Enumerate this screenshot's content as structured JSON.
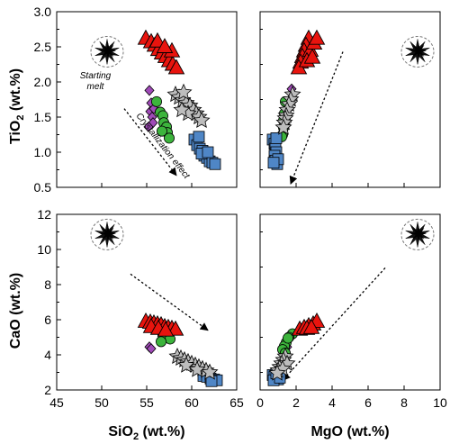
{
  "colors": {
    "triangle": "#e8140e",
    "star": "#bdbdbd",
    "circle": "#3cb43c",
    "square": "#4f86c6",
    "diamond": "#a04ab8",
    "starting_melt": "#111111"
  },
  "chart_data": [
    {
      "type": "scatter",
      "panel": "top-left",
      "xlabel": "",
      "ylabel": "TiO2 (wt.%)",
      "xlim": [
        45,
        65
      ],
      "ylim": [
        0.5,
        3.0
      ],
      "xticks": [],
      "yticks": [
        "0.5",
        "1.0",
        "1.5",
        "2.0",
        "2.5",
        "3.0"
      ],
      "yticks_values": [
        0.5,
        1.0,
        1.5,
        2.0,
        2.5,
        3.0
      ],
      "series": [
        {
          "marker": "triangle",
          "points": [
            [
              54.9,
              2.62
            ],
            [
              55.5,
              2.57
            ],
            [
              55.9,
              2.52
            ],
            [
              56.3,
              2.46
            ],
            [
              56.7,
              2.41
            ],
            [
              57.1,
              2.36
            ],
            [
              57.5,
              2.3
            ],
            [
              57.9,
              2.25
            ],
            [
              58.3,
              2.2
            ],
            [
              57.8,
              2.44
            ],
            [
              56.2,
              2.58
            ],
            [
              57.0,
              2.5
            ]
          ]
        },
        {
          "marker": "star",
          "points": [
            [
              58.2,
              1.82
            ],
            [
              58.6,
              1.78
            ],
            [
              59.0,
              1.74
            ],
            [
              59.4,
              1.7
            ],
            [
              59.8,
              1.66
            ],
            [
              60.2,
              1.6
            ],
            [
              60.5,
              1.55
            ],
            [
              59.1,
              1.85
            ],
            [
              59.6,
              1.55
            ],
            [
              60.8,
              1.5
            ],
            [
              61.1,
              1.45
            ],
            [
              58.9,
              1.6
            ]
          ]
        },
        {
          "marker": "circle",
          "points": [
            [
              56.1,
              1.72
            ],
            [
              56.5,
              1.57
            ],
            [
              56.8,
              1.52
            ],
            [
              56.9,
              1.42
            ],
            [
              57.2,
              1.36
            ],
            [
              57.3,
              1.28
            ],
            [
              56.7,
              1.3
            ],
            [
              57.5,
              1.2
            ]
          ]
        },
        {
          "marker": "square",
          "points": [
            [
              60.3,
              1.18
            ],
            [
              60.6,
              1.1
            ],
            [
              60.9,
              1.05
            ],
            [
              61.2,
              1.02
            ],
            [
              61.4,
              0.95
            ],
            [
              61.7,
              0.92
            ],
            [
              62.0,
              0.87
            ],
            [
              62.3,
              0.85
            ],
            [
              61.1,
              0.98
            ],
            [
              61.8,
              1.0
            ],
            [
              60.8,
              1.22
            ],
            [
              62.6,
              0.83
            ]
          ]
        },
        {
          "marker": "diamond",
          "points": [
            [
              55.3,
              1.88
            ],
            [
              55.5,
              1.7
            ],
            [
              55.4,
              1.58
            ],
            [
              55.6,
              1.5
            ],
            [
              55.7,
              1.42
            ],
            [
              55.2,
              1.36
            ],
            [
              55.8,
              1.62
            ]
          ]
        },
        {
          "marker": "starting_melt",
          "points": [
            [
              50.6,
              2.43
            ]
          ]
        }
      ],
      "annotations": [
        "Starting melt",
        "Crystallization effect"
      ],
      "arrow": {
        "from": [
          52.5,
          1.62
        ],
        "to": [
          58.3,
          0.67
        ]
      }
    },
    {
      "type": "scatter",
      "panel": "top-right",
      "xlabel": "",
      "ylabel": "",
      "xlim": [
        0,
        10
      ],
      "ylim": [
        0.5,
        3.0
      ],
      "xticks": [],
      "yticks": [],
      "series": [
        {
          "marker": "triangle",
          "points": [
            [
              2.7,
              2.62
            ],
            [
              2.55,
              2.52
            ],
            [
              2.45,
              2.44
            ],
            [
              2.35,
              2.36
            ],
            [
              2.25,
              2.28
            ],
            [
              2.15,
              2.2
            ],
            [
              2.8,
              2.45
            ],
            [
              3.0,
              2.55
            ],
            [
              3.15,
              2.62
            ],
            [
              2.6,
              2.3
            ],
            [
              2.9,
              2.35
            ]
          ]
        },
        {
          "marker": "star",
          "points": [
            [
              1.8,
              1.82
            ],
            [
              1.7,
              1.75
            ],
            [
              1.6,
              1.68
            ],
            [
              1.5,
              1.6
            ],
            [
              1.45,
              1.52
            ],
            [
              1.4,
              1.48
            ],
            [
              1.35,
              1.42
            ],
            [
              1.3,
              1.35
            ]
          ]
        },
        {
          "marker": "circle",
          "points": [
            [
              1.4,
              1.72
            ],
            [
              1.35,
              1.55
            ],
            [
              1.3,
              1.45
            ],
            [
              1.3,
              1.35
            ],
            [
              1.25,
              1.25
            ],
            [
              1.2,
              1.22
            ]
          ]
        },
        {
          "marker": "square",
          "points": [
            [
              0.7,
              1.18
            ],
            [
              0.8,
              1.12
            ],
            [
              0.85,
              1.05
            ],
            [
              0.9,
              1.0
            ],
            [
              0.8,
              0.95
            ],
            [
              0.85,
              0.88
            ],
            [
              0.95,
              0.83
            ],
            [
              1.0,
              0.9
            ],
            [
              0.75,
              0.85
            ],
            [
              0.9,
              1.2
            ]
          ]
        },
        {
          "marker": "diamond",
          "points": [
            [
              1.75,
              1.9
            ],
            [
              1.65,
              1.75
            ],
            [
              1.6,
              1.62
            ]
          ]
        },
        {
          "marker": "starting_melt",
          "points": [
            [
              8.75,
              2.43
            ]
          ]
        }
      ],
      "arrow": {
        "from": [
          4.6,
          2.43
        ],
        "to": [
          1.7,
          0.55
        ]
      }
    },
    {
      "type": "scatter",
      "panel": "bottom-left",
      "xlabel": "SiO2 (wt.%)",
      "ylabel": "CaO (wt.%)",
      "xlim": [
        45,
        65
      ],
      "ylim": [
        2,
        12
      ],
      "xticks": [
        "45",
        "50",
        "55",
        "60",
        "65"
      ],
      "xticks_values": [
        45,
        50,
        55,
        60,
        65
      ],
      "yticks": [
        "2",
        "4",
        "6",
        "8",
        "10",
        "12"
      ],
      "yticks_values": [
        2,
        4,
        6,
        8,
        10,
        12
      ],
      "series": [
        {
          "marker": "triangle",
          "points": [
            [
              54.9,
              5.9
            ],
            [
              55.4,
              5.85
            ],
            [
              55.8,
              5.8
            ],
            [
              56.2,
              5.75
            ],
            [
              56.6,
              5.7
            ],
            [
              57.0,
              5.6
            ],
            [
              57.4,
              5.55
            ],
            [
              57.8,
              5.5
            ],
            [
              58.2,
              5.45
            ],
            [
              55.5,
              5.6
            ],
            [
              56.3,
              5.5
            ],
            [
              57.1,
              5.4
            ]
          ]
        },
        {
          "marker": "star",
          "points": [
            [
              58.4,
              3.9
            ],
            [
              58.8,
              3.8
            ],
            [
              59.2,
              3.7
            ],
            [
              59.6,
              3.6
            ],
            [
              60.0,
              3.5
            ],
            [
              60.4,
              3.4
            ],
            [
              60.8,
              3.3
            ],
            [
              61.2,
              3.2
            ],
            [
              61.6,
              3.1
            ],
            [
              62.0,
              3.0
            ],
            [
              59.4,
              3.4
            ],
            [
              60.6,
              3.15
            ]
          ]
        },
        {
          "marker": "circle",
          "points": [
            [
              56.8,
              5.1
            ],
            [
              57.2,
              5.0
            ],
            [
              57.6,
              4.9
            ],
            [
              56.6,
              4.75
            ]
          ]
        },
        {
          "marker": "square",
          "points": [
            [
              61.3,
              2.8
            ],
            [
              61.7,
              2.75
            ],
            [
              62.1,
              2.65
            ],
            [
              62.5,
              2.6
            ],
            [
              62.8,
              2.55
            ],
            [
              62.2,
              2.5
            ]
          ]
        },
        {
          "marker": "diamond",
          "points": [
            [
              55.3,
              4.45
            ],
            [
              55.5,
              4.35
            ]
          ]
        },
        {
          "marker": "starting_melt",
          "points": [
            [
              50.6,
              10.85
            ]
          ]
        }
      ],
      "arrow": {
        "from": [
          53.2,
          8.6
        ],
        "to": [
          61.8,
          5.4
        ]
      }
    },
    {
      "type": "scatter",
      "panel": "bottom-right",
      "xlabel": "MgO (wt.%)",
      "ylabel": "",
      "xlim": [
        0,
        10
      ],
      "ylim": [
        2,
        12
      ],
      "xticks": [
        "0",
        "2",
        "4",
        "6",
        "8",
        "10"
      ],
      "xticks_values": [
        0,
        2,
        4,
        6,
        8,
        10
      ],
      "yticks": [],
      "series": [
        {
          "marker": "triangle",
          "points": [
            [
              2.2,
              5.45
            ],
            [
              2.45,
              5.55
            ],
            [
              2.7,
              5.65
            ],
            [
              2.95,
              5.75
            ],
            [
              3.15,
              5.9
            ],
            [
              2.6,
              5.5
            ],
            [
              2.85,
              5.55
            ]
          ]
        },
        {
          "marker": "star",
          "points": [
            [
              1.4,
              3.9
            ],
            [
              1.3,
              3.7
            ],
            [
              1.2,
              3.5
            ],
            [
              1.1,
              3.3
            ],
            [
              1.0,
              3.1
            ],
            [
              1.5,
              3.5
            ],
            [
              1.25,
              3.2
            ],
            [
              0.95,
              2.95
            ]
          ]
        },
        {
          "marker": "circle",
          "points": [
            [
              1.8,
              5.2
            ],
            [
              1.6,
              5.0
            ],
            [
              1.45,
              4.7
            ],
            [
              1.35,
              4.5
            ],
            [
              1.55,
              4.95
            ],
            [
              1.25,
              4.3
            ],
            [
              1.4,
              4.1
            ]
          ]
        },
        {
          "marker": "square",
          "points": [
            [
              0.7,
              2.85
            ],
            [
              0.8,
              2.75
            ],
            [
              0.9,
              2.65
            ],
            [
              1.0,
              2.6
            ],
            [
              0.75,
              2.55
            ],
            [
              0.9,
              2.95
            ],
            [
              1.1,
              2.7
            ]
          ]
        },
        {
          "marker": "diamond",
          "points": [
            [
              1.5,
              4.45
            ],
            [
              1.4,
              4.35
            ]
          ]
        },
        {
          "marker": "starting_melt",
          "points": [
            [
              8.75,
              10.85
            ]
          ]
        }
      ],
      "arrow": {
        "from": [
          6.95,
          8.95
        ],
        "to": [
          1.25,
          2.55
        ]
      }
    }
  ]
}
